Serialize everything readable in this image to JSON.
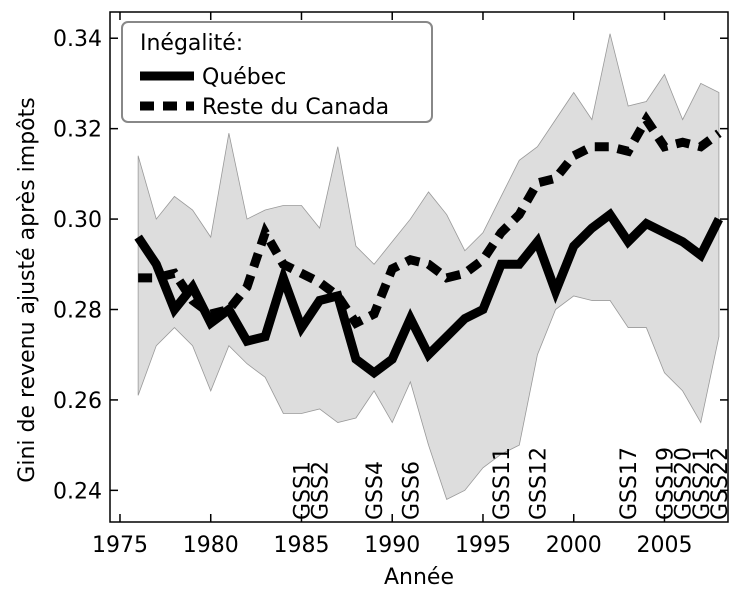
{
  "chart_data": {
    "type": "line",
    "xlabel": "Année",
    "ylabel": "Gini de revenu ajusté après impôts",
    "x": [
      1976,
      1977,
      1978,
      1979,
      1980,
      1981,
      1982,
      1983,
      1984,
      1985,
      1986,
      1987,
      1988,
      1989,
      1990,
      1991,
      1992,
      1993,
      1994,
      1995,
      1996,
      1997,
      1998,
      1999,
      2000,
      2001,
      2002,
      2003,
      2004,
      2005,
      2006,
      2007,
      2008
    ],
    "series": [
      {
        "name": "Québec",
        "color": "#000000",
        "dash": false,
        "values": [
          0.296,
          0.29,
          0.28,
          0.285,
          0.277,
          0.28,
          0.273,
          0.274,
          0.287,
          0.276,
          0.282,
          0.283,
          0.269,
          0.266,
          0.269,
          0.278,
          0.27,
          0.274,
          0.278,
          0.28,
          0.29,
          0.29,
          0.295,
          0.284,
          0.294,
          0.298,
          0.301,
          0.295,
          0.299,
          0.297,
          0.295,
          0.292,
          0.3
        ]
      },
      {
        "name": "Reste du Canada",
        "color": "#000000",
        "dash": true,
        "values": [
          0.287,
          0.287,
          0.288,
          0.282,
          0.279,
          0.28,
          0.285,
          0.297,
          0.29,
          0.288,
          0.286,
          0.283,
          0.277,
          0.279,
          0.289,
          0.291,
          0.29,
          0.287,
          0.288,
          0.291,
          0.297,
          0.301,
          0.308,
          0.309,
          0.314,
          0.316,
          0.316,
          0.315,
          0.322,
          0.316,
          0.317,
          0.316,
          0.319
        ]
      }
    ],
    "band": {
      "color": "#dddddd",
      "upper": [
        0.314,
        0.3,
        0.305,
        0.302,
        0.296,
        0.319,
        0.3,
        0.302,
        0.303,
        0.303,
        0.298,
        0.316,
        0.294,
        0.29,
        0.295,
        0.3,
        0.306,
        0.301,
        0.293,
        0.297,
        0.305,
        0.313,
        0.316,
        0.322,
        0.328,
        0.322,
        0.341,
        0.325,
        0.326,
        0.332,
        0.322,
        0.33,
        0.328
      ],
      "lower": [
        0.261,
        0.272,
        0.276,
        0.272,
        0.262,
        0.272,
        0.268,
        0.265,
        0.257,
        0.257,
        0.258,
        0.255,
        0.256,
        0.262,
        0.255,
        0.264,
        0.25,
        0.238,
        0.24,
        0.245,
        0.248,
        0.25,
        0.27,
        0.28,
        0.283,
        0.282,
        0.282,
        0.276,
        0.276,
        0.266,
        0.262,
        0.255,
        0.274
      ]
    },
    "annotations": [
      {
        "text": "GSS1",
        "x": 1985
      },
      {
        "text": "GSS2",
        "x": 1986
      },
      {
        "text": "GSS4",
        "x": 1989
      },
      {
        "text": "GSS6",
        "x": 1991
      },
      {
        "text": "GSS11",
        "x": 1996
      },
      {
        "text": "GSS12",
        "x": 1998
      },
      {
        "text": "GSS17",
        "x": 2003
      },
      {
        "text": "GSS19",
        "x": 2005
      },
      {
        "text": "GSS20",
        "x": 2006
      },
      {
        "text": "GSS21",
        "x": 2007
      },
      {
        "text": "GSS22",
        "x": 2008
      }
    ],
    "xlim": [
      1974.45,
      2008.5
    ],
    "xticks": [
      1975,
      1980,
      1985,
      1990,
      1995,
      2000,
      2005
    ],
    "ylim": [
      0.233,
      0.3458
    ],
    "yticks": [
      0.24,
      0.26,
      0.28,
      {
        "value": 0.3,
        "label": "0.30"
      },
      0.32,
      0.34
    ],
    "legend_title": "Inégalité:",
    "legend": "upper left"
  }
}
